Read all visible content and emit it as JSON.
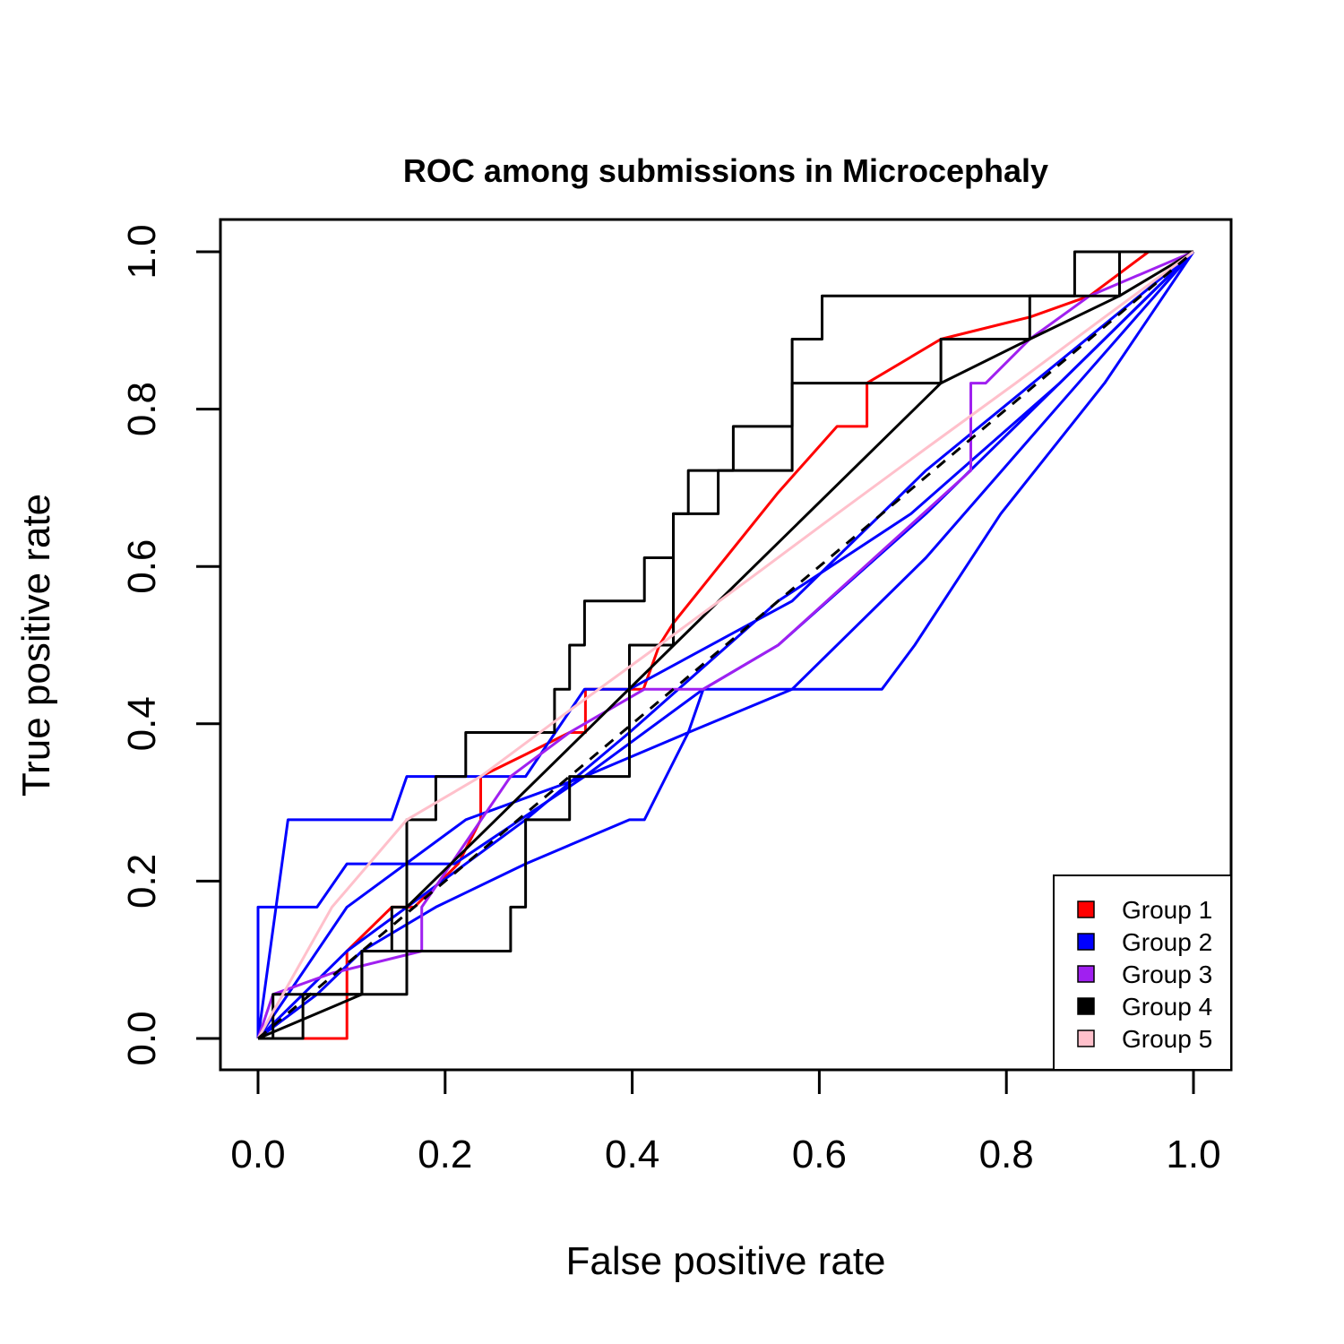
{
  "chart_data": {
    "type": "line",
    "title": "ROC among submissions in Microcephaly",
    "xlabel": "False positive rate",
    "ylabel": "True positive rate",
    "xlim": [
      0,
      1
    ],
    "ylim": [
      0,
      1
    ],
    "xticks": [
      "0.0",
      "0.2",
      "0.4",
      "0.6",
      "0.8",
      "1.0"
    ],
    "yticks": [
      "0.0",
      "0.2",
      "0.4",
      "0.6",
      "0.8",
      "1.0"
    ],
    "grid": false,
    "legend_position": "bottom-right",
    "legend": [
      {
        "label": "Group 1",
        "color": "#ff0000"
      },
      {
        "label": "Group 2",
        "color": "#0000ff"
      },
      {
        "label": "Group 3",
        "color": "#a020f0"
      },
      {
        "label": "Group 4",
        "color": "#000000"
      },
      {
        "label": "Group 5",
        "color": "#ffc0cb"
      }
    ],
    "reference_line": {
      "x": [
        0,
        1
      ],
      "y": [
        0,
        1
      ],
      "style": "dashed",
      "color": "#000000"
    },
    "series": [
      {
        "group": 1,
        "color": "#ff0000",
        "x": [
          0,
          0.048,
          0.095,
          0.095,
          0.143,
          0.167,
          0.19,
          0.214,
          0.238,
          0.238,
          0.286,
          0.333,
          0.35,
          0.35,
          0.412,
          0.429,
          0.444,
          0.5,
          0.556,
          0.619,
          0.651,
          0.651,
          0.651,
          0.73,
          0.825,
          0.889,
          0.952,
          1
        ],
        "y": [
          0,
          0,
          0,
          0.111,
          0.167,
          0.167,
          0.194,
          0.222,
          0.278,
          0.333,
          0.361,
          0.389,
          0.389,
          0.444,
          0.444,
          0.5,
          0.528,
          0.611,
          0.694,
          0.778,
          0.778,
          0.833,
          0.833,
          0.889,
          0.917,
          0.944,
          1,
          1
        ]
      },
      {
        "group": 2,
        "color": "#0000ff",
        "x": [
          0,
          0.032,
          0.143,
          0.159,
          0.19,
          0.286,
          0.349,
          0.397,
          0.571,
          0.714,
          0.857,
          1
        ],
        "y": [
          0,
          0.278,
          0.278,
          0.333,
          0.333,
          0.333,
          0.444,
          0.444,
          0.556,
          0.722,
          0.861,
          1
        ]
      },
      {
        "group": 2,
        "color": "#0000ff",
        "x": [
          0,
          0,
          0.063,
          0.095,
          0.143,
          0.21,
          0.349,
          0.476,
          0.571,
          0.667,
          0.702,
          0.794,
          0.905,
          1
        ],
        "y": [
          0,
          0.167,
          0.167,
          0.222,
          0.222,
          0.222,
          0.333,
          0.444,
          0.444,
          0.444,
          0.5,
          0.667,
          0.833,
          1
        ]
      },
      {
        "group": 2,
        "color": "#0000ff",
        "x": [
          0,
          0.063,
          0.111,
          0.19,
          0.286,
          0.397,
          0.413,
          0.46,
          0.476,
          0.556,
          0.714,
          0.857,
          1
        ],
        "y": [
          0,
          0.056,
          0.111,
          0.167,
          0.222,
          0.278,
          0.278,
          0.389,
          0.444,
          0.5,
          0.667,
          0.833,
          1
        ]
      },
      {
        "group": 2,
        "color": "#0000ff",
        "x": [
          0,
          0.095,
          0.19,
          0.286,
          0.397,
          0.556,
          0.698,
          0.857,
          1
        ],
        "y": [
          0,
          0.111,
          0.194,
          0.278,
          0.389,
          0.556,
          0.667,
          0.833,
          1
        ]
      },
      {
        "group": 2,
        "color": "#0000ff",
        "x": [
          0,
          0.095,
          0.222,
          0.349,
          0.46,
          0.571,
          0.714,
          0.857,
          1
        ],
        "y": [
          0,
          0.167,
          0.278,
          0.333,
          0.389,
          0.444,
          0.611,
          0.806,
          1
        ]
      },
      {
        "group": 3,
        "color": "#a020f0",
        "x": [
          0,
          0.016,
          0.079,
          0.175,
          0.175,
          0.27,
          0.333,
          0.413,
          0.476,
          0.556,
          0.762,
          0.762,
          0.778,
          0.825,
          0.889,
          1
        ],
        "y": [
          0,
          0.056,
          0.083,
          0.111,
          0.167,
          0.333,
          0.389,
          0.444,
          0.444,
          0.5,
          0.722,
          0.833,
          0.833,
          0.889,
          0.944,
          1
        ]
      },
      {
        "group": 4,
        "color": "#000000",
        "x": [
          0,
          0.016,
          0.016,
          0.048,
          0.048,
          0.159,
          0.159,
          0.19,
          0.19,
          0.222,
          0.222,
          0.317,
          0.317,
          0.333,
          0.333,
          0.349,
          0.349,
          0.413,
          0.413,
          0.444,
          0.444,
          0.46,
          0.46,
          0.571,
          0.571,
          0.603,
          0.603,
          0.825,
          0.825,
          0.873,
          0.873,
          1
        ],
        "y": [
          0,
          0,
          0.056,
          0.056,
          0.056,
          0.056,
          0.278,
          0.278,
          0.333,
          0.333,
          0.389,
          0.389,
          0.444,
          0.444,
          0.5,
          0.5,
          0.556,
          0.556,
          0.611,
          0.611,
          0.667,
          0.667,
          0.722,
          0.722,
          0.889,
          0.889,
          0.944,
          0.944,
          0.944,
          0.944,
          1,
          1
        ]
      },
      {
        "group": 4,
        "color": "#000000",
        "x": [
          0,
          0.111,
          0.111,
          0.143,
          0.143,
          0.27,
          0.27,
          0.286,
          0.286,
          0.333,
          0.333,
          0.397,
          0.397,
          0.444,
          0.444,
          0.492,
          0.492,
          0.508,
          0.508,
          0.571,
          0.571,
          0.587,
          0.587,
          0.73,
          0.73,
          0.825,
          0.825,
          0.921,
          0.921,
          1
        ],
        "y": [
          0,
          0.056,
          0.111,
          0.111,
          0.111,
          0.111,
          0.167,
          0.167,
          0.278,
          0.278,
          0.333,
          0.333,
          0.5,
          0.5,
          0.667,
          0.667,
          0.722,
          0.722,
          0.778,
          0.778,
          0.833,
          0.833,
          0.833,
          0.833,
          0.889,
          0.889,
          0.944,
          0.944,
          1,
          1
        ]
      },
      {
        "group": 4,
        "color": "#000000",
        "x": [
          0,
          0.048,
          0.048,
          0.111,
          0.111,
          0.143,
          0.143,
          0.159,
          0.159,
          0.73,
          0.825,
          0.921,
          1
        ],
        "y": [
          0,
          0,
          0.056,
          0.056,
          0.111,
          0.111,
          0.167,
          0.167,
          0.167,
          0.833,
          0.889,
          0.944,
          1
        ]
      },
      {
        "group": 5,
        "color": "#ffc0cb",
        "x": [
          0,
          0.079,
          0.159,
          0.238,
          0.333,
          0.429,
          0.524,
          0.619,
          0.714,
          0.81,
          0.905,
          1
        ],
        "y": [
          0,
          0.167,
          0.278,
          0.333,
          0.417,
          0.5,
          0.583,
          0.667,
          0.75,
          0.833,
          0.917,
          1
        ]
      }
    ]
  }
}
